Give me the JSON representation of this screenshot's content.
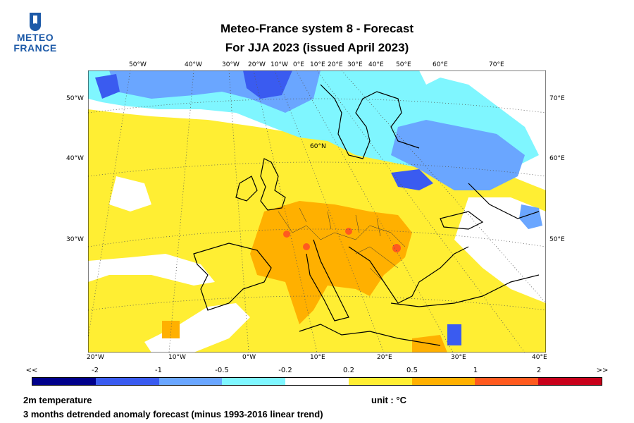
{
  "header": {
    "logo_line1": "METEO",
    "logo_line2": "FRANCE",
    "title_line1": "Meteo-France system 8  -  Forecast",
    "title_line2": "For JJA 2023      (issued April 2023)"
  },
  "map": {
    "top_lon_labels": [
      "50°W",
      "40°W",
      "30°W",
      "20°W",
      "10°W",
      "0°E",
      "10°E",
      "20°E",
      "30°E",
      "40°E",
      "50°E",
      "60°E",
      "70°E"
    ],
    "left_lon_labels": [
      "50°W",
      "40°W",
      "30°W"
    ],
    "right_lon_labels": [
      "70°E",
      "60°E",
      "50°E"
    ],
    "bottom_lon_labels": [
      "20°W",
      "10°W",
      "0°W",
      "10°E",
      "20°E",
      "30°E",
      "40°E"
    ],
    "lat_label": "60°N"
  },
  "legend": {
    "labels": [
      "<<",
      "-2",
      "-1",
      "-0.5",
      "-0.2",
      "0.2",
      "0.5",
      "1",
      "2",
      ">>"
    ],
    "colors": [
      "#00008b",
      "#3a5bf0",
      "#6aa6ff",
      "#7ff6ff",
      "#ffffff",
      "#ffee33",
      "#ffb000",
      "#ff5a1f",
      "#c8001a"
    ]
  },
  "footer": {
    "variable": "2m temperature",
    "unit": "unit : °C",
    "description": "3 months detrended anomaly forecast (minus 1993-2016 linear trend)"
  }
}
